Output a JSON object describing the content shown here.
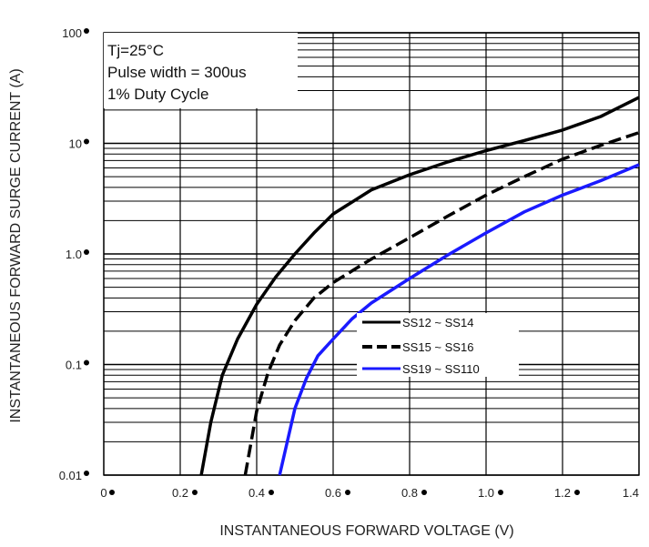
{
  "chart_data": {
    "type": "line",
    "xlabel": "INSTANTANEOUS FORWARD VOLTAGE (V)",
    "ylabel": "INSTANTANEOUS FORWARD SURGE CURRENT (A)",
    "xlim": [
      0,
      1.4
    ],
    "ylim": [
      0.01,
      100
    ],
    "yscale": "log",
    "x_ticks": [
      "0",
      "0.2",
      "0.4",
      "0.6",
      "0.8",
      "1.0",
      "1.2",
      "1.4"
    ],
    "y_ticks": [
      "0.01",
      "0.1",
      "1.0",
      "10",
      "100"
    ],
    "grid": true,
    "legend_position": "center-right",
    "annotations": [
      "Tj=25°C",
      "Pulse width = 300us",
      "1% Duty Cycle"
    ],
    "series": [
      {
        "name": "SS12 ~ SS14",
        "color": "#000000",
        "style": "solid",
        "x": [
          0.255,
          0.28,
          0.31,
          0.35,
          0.4,
          0.45,
          0.5,
          0.55,
          0.6,
          0.7,
          0.8,
          0.9,
          1.0,
          1.1,
          1.2,
          1.3,
          1.4
        ],
        "y": [
          0.01,
          0.03,
          0.08,
          0.17,
          0.35,
          0.62,
          1.0,
          1.55,
          2.3,
          3.8,
          5.2,
          6.8,
          8.6,
          10.6,
          13.2,
          17.5,
          26
        ]
      },
      {
        "name": "SS15 ~ SS16",
        "color": "#000000",
        "style": "dashed",
        "x": [
          0.37,
          0.4,
          0.43,
          0.46,
          0.5,
          0.55,
          0.6,
          0.7,
          0.8,
          0.9,
          1.0,
          1.1,
          1.2,
          1.3,
          1.4
        ],
        "y": [
          0.01,
          0.038,
          0.085,
          0.15,
          0.25,
          0.4,
          0.55,
          0.9,
          1.4,
          2.2,
          3.4,
          5.0,
          7.2,
          9.6,
          12.5
        ]
      },
      {
        "name": "SS19 ~ SS110",
        "color": "#1a1aff",
        "style": "solid",
        "x": [
          0.46,
          0.48,
          0.5,
          0.53,
          0.56,
          0.6,
          0.65,
          0.7,
          0.8,
          0.9,
          1.0,
          1.1,
          1.2,
          1.3,
          1.4
        ],
        "y": [
          0.01,
          0.02,
          0.04,
          0.075,
          0.12,
          0.17,
          0.26,
          0.36,
          0.6,
          0.98,
          1.55,
          2.4,
          3.4,
          4.6,
          6.4
        ]
      }
    ]
  }
}
